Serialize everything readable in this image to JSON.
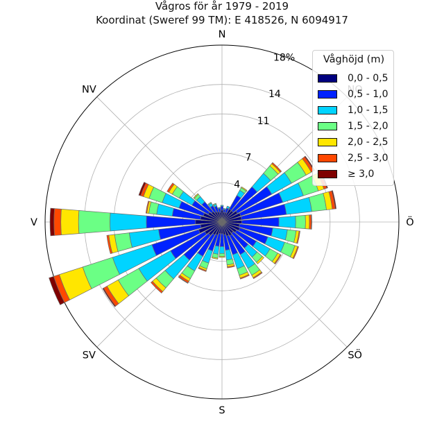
{
  "title_line1": "Vågros för år 1979 - 2019",
  "title_line2": "Koordinat (Sweref 99 TM): E 418526, N 6094917",
  "legend": {
    "title": "Våghöjd (m)",
    "entries": [
      {
        "label": "0,0 - 0,5",
        "color": "#00007f"
      },
      {
        "label": "0,5 - 1,0",
        "color": "#0022ff"
      },
      {
        "label": "1,0 - 1,5",
        "color": "#00d4ff"
      },
      {
        "label": "1,5 - 2,0",
        "color": "#6bff85"
      },
      {
        "label": "2,0 - 2,5",
        "color": "#ffe600"
      },
      {
        "label": "2,5 - 3,0",
        "color": "#ff4800"
      },
      {
        "label": "≥ 3,0",
        "color": "#7f0000"
      }
    ]
  },
  "chart_data": {
    "type": "polar_stacked_bar",
    "radial_unit": "%",
    "rmax": 18,
    "radial_ticks": [
      4,
      7,
      11,
      14
    ],
    "radial_tick_labels": [
      "4",
      "7",
      "11",
      "14",
      "18%"
    ],
    "direction_labels": [
      "N",
      "NO",
      "Ö",
      "SÖ",
      "S",
      "SV",
      "V",
      "NV"
    ],
    "grid": true,
    "legend_position": "top-right",
    "series": [
      "0,0 - 0,5",
      "0,5 - 1,0",
      "1,0 - 1,5",
      "1,5 - 2,0",
      "2,0 - 2,5",
      "2,5 - 3,0",
      "≥ 3,0"
    ],
    "sectors": [
      {
        "direction_deg": 0,
        "values": [
          1.2,
          0.4,
          0.1,
          0,
          0,
          0,
          0
        ]
      },
      {
        "direction_deg": 11.25,
        "values": [
          1.0,
          0.3,
          0.1,
          0,
          0,
          0,
          0
        ]
      },
      {
        "direction_deg": 22.5,
        "values": [
          1.0,
          0.5,
          0.2,
          0,
          0,
          0,
          0
        ]
      },
      {
        "direction_deg": 33.75,
        "values": [
          1.5,
          1.6,
          0.6,
          0.3,
          0.1,
          0,
          0
        ]
      },
      {
        "direction_deg": 45,
        "values": [
          1.5,
          3.2,
          1.8,
          1.0,
          0.3,
          0.15,
          0
        ]
      },
      {
        "direction_deg": 56.25,
        "values": [
          1.8,
          4.0,
          2.3,
          1.7,
          0.6,
          0.3,
          0.1
        ]
      },
      {
        "direction_deg": 67.5,
        "values": [
          2.0,
          4.5,
          2.2,
          1.6,
          0.6,
          0.3,
          0.1
        ]
      },
      {
        "direction_deg": 78.75,
        "values": [
          2.0,
          4.6,
          2.6,
          1.5,
          0.6,
          0.3,
          0.1
        ]
      },
      {
        "direction_deg": 90,
        "values": [
          2.0,
          3.8,
          1.7,
          1.0,
          0.4,
          0.2,
          0.05
        ]
      },
      {
        "direction_deg": 101.25,
        "values": [
          1.8,
          3.4,
          1.5,
          0.9,
          0.3,
          0.1,
          0
        ]
      },
      {
        "direction_deg": 112.5,
        "values": [
          1.9,
          3.0,
          1.8,
          1.1,
          0.3,
          0.1,
          0
        ]
      },
      {
        "direction_deg": 123.75,
        "values": [
          1.7,
          2.3,
          1.6,
          0.9,
          0.3,
          0.1,
          0
        ]
      },
      {
        "direction_deg": 135,
        "values": [
          1.5,
          2.0,
          1.2,
          0.7,
          0.2,
          0,
          0
        ]
      },
      {
        "direction_deg": 146.25,
        "values": [
          1.6,
          2.2,
          1.6,
          0.8,
          0.3,
          0.1,
          0
        ]
      },
      {
        "direction_deg": 157.5,
        "values": [
          1.5,
          2.0,
          1.5,
          0.7,
          0.3,
          0.1,
          0
        ]
      },
      {
        "direction_deg": 168.75,
        "values": [
          1.3,
          1.6,
          1.0,
          0.5,
          0.2,
          0.1,
          0
        ]
      },
      {
        "direction_deg": 180,
        "values": [
          1.2,
          1.3,
          0.7,
          0.3,
          0.1,
          0,
          0
        ]
      },
      {
        "direction_deg": 191.25,
        "values": [
          1.2,
          1.3,
          0.8,
          0.4,
          0.1,
          0,
          0
        ]
      },
      {
        "direction_deg": 202.5,
        "values": [
          1.4,
          1.7,
          1.3,
          0.6,
          0.2,
          0.1,
          0
        ]
      },
      {
        "direction_deg": 213.75,
        "values": [
          1.5,
          2.5,
          1.7,
          0.9,
          0.3,
          0.2,
          0.05
        ]
      },
      {
        "direction_deg": 225,
        "values": [
          1.8,
          3.3,
          2.5,
          1.2,
          0.5,
          0.2,
          0
        ]
      },
      {
        "direction_deg": 236.25,
        "values": [
          2.0,
          4.0,
          3.7,
          2.4,
          1.3,
          0.4,
          0.1
        ]
      },
      {
        "direction_deg": 247.5,
        "values": [
          2.5,
          5.0,
          4.2,
          3.2,
          2.5,
          0.6,
          0.5
        ]
      },
      {
        "direction_deg": 258.75,
        "values": [
          2.2,
          4.3,
          3.0,
          1.5,
          0.6,
          0.2,
          0
        ]
      },
      {
        "direction_deg": 270,
        "values": [
          2.7,
          5.0,
          3.7,
          3.2,
          1.8,
          0.7,
          0.4
        ]
      },
      {
        "direction_deg": 281.25,
        "values": [
          2.2,
          2.9,
          1.6,
          0.8,
          0.2,
          0.1,
          0
        ]
      },
      {
        "direction_deg": 292.5,
        "values": [
          2.0,
          2.6,
          1.8,
          1.4,
          0.6,
          0.3,
          0.2
        ]
      },
      {
        "direction_deg": 303.75,
        "values": [
          1.6,
          1.9,
          1.5,
          0.8,
          0.4,
          0.2,
          0
        ]
      },
      {
        "direction_deg": 315,
        "values": [
          1.4,
          1.3,
          0.7,
          0.3,
          0.1,
          0,
          0
        ]
      },
      {
        "direction_deg": 326.25,
        "values": [
          1.2,
          0.7,
          0.3,
          0.1,
          0,
          0,
          0
        ]
      },
      {
        "direction_deg": 337.5,
        "values": [
          1.1,
          0.6,
          0.2,
          0.1,
          0,
          0,
          0
        ]
      },
      {
        "direction_deg": 348.75,
        "values": [
          1.0,
          0.4,
          0.1,
          0,
          0,
          0,
          0
        ]
      }
    ]
  }
}
